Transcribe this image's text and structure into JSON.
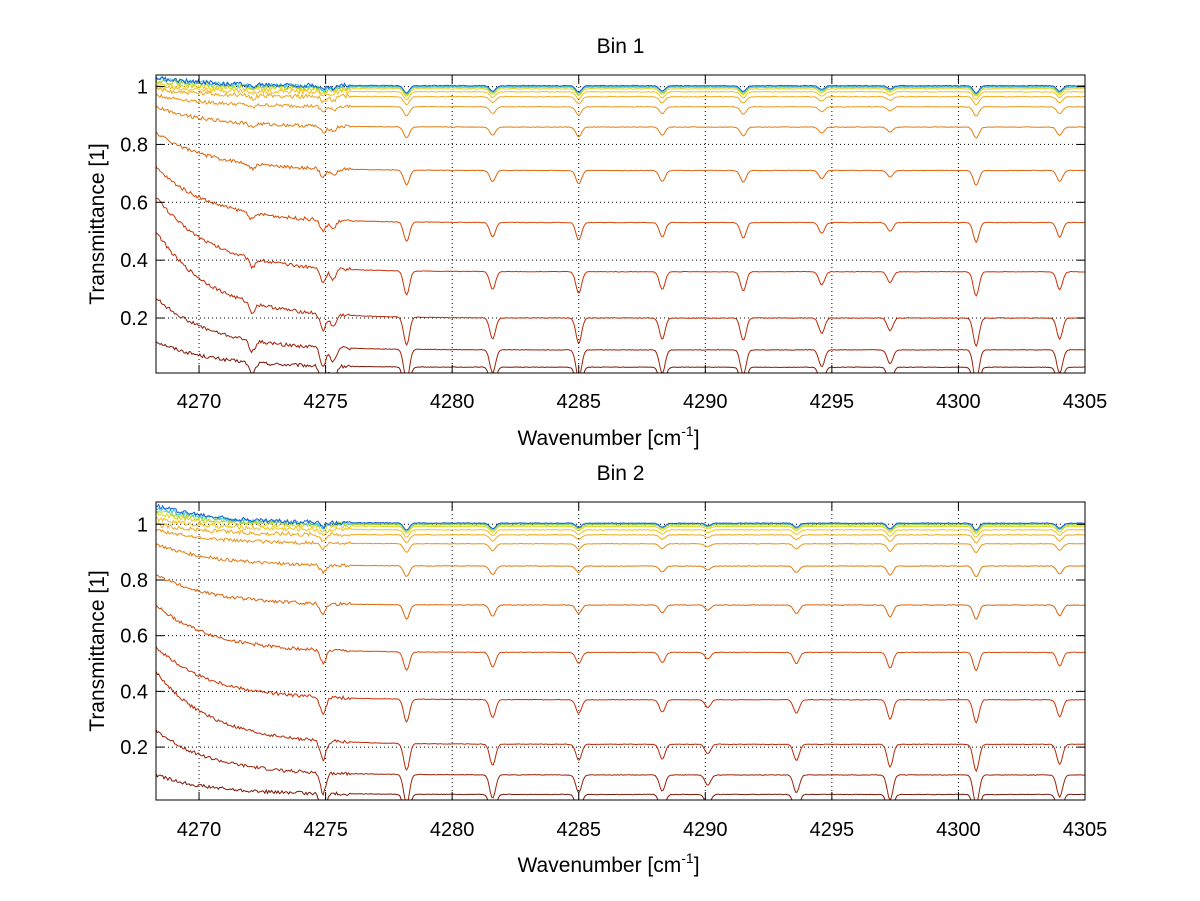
{
  "chart_data": [
    {
      "type": "line",
      "title": "Bin 1",
      "xlabel": "Wavenumber [cm",
      "xlabel_sup": "-1",
      "xlabel_end": "]",
      "ylabel": "Transmittance [1]",
      "xlim": [
        4268.3,
        4305
      ],
      "ylim": [
        0.01,
        1.04
      ],
      "xticks": [
        4270,
        4275,
        4280,
        4285,
        4290,
        4295,
        4300,
        4305
      ],
      "yticks": [
        0.2,
        0.4,
        0.6,
        0.8,
        1
      ],
      "ytick_labels": [
        "0.2",
        "0.4",
        "0.6",
        "0.8",
        "1"
      ],
      "grid": true,
      "absorption_lines": [
        {
          "x": 4272.1,
          "depth": 0.35
        },
        {
          "x": 4274.9,
          "depth": 0.6
        },
        {
          "x": 4275.3,
          "depth": 0.45
        },
        {
          "x": 4278.2,
          "depth": 1.0
        },
        {
          "x": 4281.6,
          "depth": 0.75
        },
        {
          "x": 4285.0,
          "depth": 0.9
        },
        {
          "x": 4288.3,
          "depth": 0.75
        },
        {
          "x": 4291.5,
          "depth": 0.8
        },
        {
          "x": 4294.6,
          "depth": 0.55
        },
        {
          "x": 4297.3,
          "depth": 0.45
        },
        {
          "x": 4300.7,
          "depth": 1.0
        },
        {
          "x": 4304.0,
          "depth": 0.75
        }
      ],
      "series": [
        {
          "level": 0.03,
          "start": 0.12,
          "color": "#7a1a0a"
        },
        {
          "level": 0.09,
          "start": 0.27,
          "color": "#9b2208"
        },
        {
          "level": 0.2,
          "start": 0.5,
          "color": "#b82a07"
        },
        {
          "level": 0.36,
          "start": 0.62,
          "color": "#cc3307"
        },
        {
          "level": 0.53,
          "start": 0.72,
          "color": "#d64a08"
        },
        {
          "level": 0.71,
          "start": 0.84,
          "color": "#dd640a"
        },
        {
          "level": 0.86,
          "start": 0.93,
          "color": "#e07c12"
        },
        {
          "level": 0.93,
          "start": 0.97,
          "color": "#e8951a"
        },
        {
          "level": 0.965,
          "start": 0.99,
          "color": "#efaa1c"
        },
        {
          "level": 0.982,
          "start": 1.0,
          "color": "#f3c21e"
        },
        {
          "level": 0.992,
          "start": 1.01,
          "color": "#e4d21c"
        },
        {
          "level": 0.997,
          "start": 1.02,
          "color": "#a8d830"
        },
        {
          "level": 1.0,
          "start": 1.03,
          "color": "#3cc8d8"
        },
        {
          "level": 1.003,
          "start": 1.03,
          "color": "#1a5fd8"
        }
      ]
    },
    {
      "type": "line",
      "title": "Bin 2",
      "xlabel": "Wavenumber [cm",
      "xlabel_sup": "-1",
      "xlabel_end": "]",
      "ylabel": "Transmittance [1]",
      "xlim": [
        4268.3,
        4305
      ],
      "ylim": [
        0.01,
        1.08
      ],
      "xticks": [
        4270,
        4275,
        4280,
        4285,
        4290,
        4295,
        4300,
        4305
      ],
      "yticks": [
        0.2,
        0.4,
        0.6,
        0.8,
        1
      ],
      "ytick_labels": [
        "0.2",
        "0.4",
        "0.6",
        "0.8",
        "1"
      ],
      "grid": true,
      "absorption_lines": [
        {
          "x": 4274.9,
          "depth": 0.7
        },
        {
          "x": 4278.2,
          "depth": 1.0
        },
        {
          "x": 4281.6,
          "depth": 0.8
        },
        {
          "x": 4285.0,
          "depth": 0.6
        },
        {
          "x": 4288.3,
          "depth": 0.55
        },
        {
          "x": 4290.1,
          "depth": 0.35
        },
        {
          "x": 4293.6,
          "depth": 0.6
        },
        {
          "x": 4297.3,
          "depth": 0.85
        },
        {
          "x": 4300.7,
          "depth": 1.0
        },
        {
          "x": 4304.0,
          "depth": 0.75
        }
      ],
      "series": [
        {
          "level": 0.03,
          "start": 0.1,
          "color": "#7a1a0a"
        },
        {
          "level": 0.1,
          "start": 0.26,
          "color": "#9b2208"
        },
        {
          "level": 0.21,
          "start": 0.47,
          "color": "#b82a07"
        },
        {
          "level": 0.37,
          "start": 0.56,
          "color": "#cc3307"
        },
        {
          "level": 0.54,
          "start": 0.71,
          "color": "#d64a08"
        },
        {
          "level": 0.71,
          "start": 0.82,
          "color": "#dd640a"
        },
        {
          "level": 0.85,
          "start": 0.93,
          "color": "#e07c12"
        },
        {
          "level": 0.93,
          "start": 0.98,
          "color": "#e8951a"
        },
        {
          "level": 0.962,
          "start": 1.0,
          "color": "#efaa1c"
        },
        {
          "level": 0.98,
          "start": 1.02,
          "color": "#f3c21e"
        },
        {
          "level": 0.992,
          "start": 1.04,
          "color": "#e4d21c"
        },
        {
          "level": 0.998,
          "start": 1.05,
          "color": "#a8d830"
        },
        {
          "level": 1.002,
          "start": 1.06,
          "color": "#3cc8d8"
        },
        {
          "level": 1.004,
          "start": 1.07,
          "color": "#1a5fd8"
        }
      ]
    }
  ]
}
